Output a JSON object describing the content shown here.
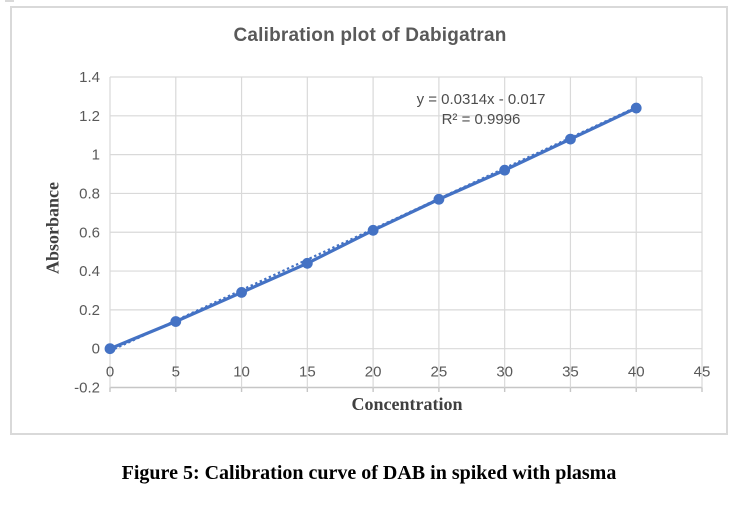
{
  "caption": "Figure 5: Calibration curve of DAB in spiked with plasma",
  "chart_data": {
    "type": "scatter",
    "title": "Calibration plot of Dabigatran",
    "xlabel": "Concentration",
    "ylabel": "Absorbance",
    "x": [
      0,
      5,
      10,
      15,
      20,
      25,
      30,
      35,
      40
    ],
    "y": [
      0.0,
      0.14,
      0.29,
      0.44,
      0.61,
      0.77,
      0.92,
      1.08,
      1.24
    ],
    "annotations": {
      "equation": "y = 0.0314x - 0.017",
      "r_squared": "R² = 0.9996"
    },
    "trendline": {
      "slope": 0.0314,
      "intercept": -0.017,
      "x_start": 0,
      "x_end": 40,
      "style": "dotted"
    },
    "xlim": [
      0,
      45
    ],
    "ylim": [
      -0.2,
      1.4
    ],
    "x_tick_labels": [
      "0",
      "5",
      "10",
      "15",
      "20",
      "25",
      "30",
      "35",
      "40",
      "45"
    ],
    "x_tick_values": [
      0,
      5,
      10,
      15,
      20,
      25,
      30,
      35,
      40,
      45
    ],
    "y_tick_labels": [
      "-0.2",
      "0",
      "0.2",
      "0.4",
      "0.6",
      "0.8",
      "1",
      "1.2",
      "1.4"
    ],
    "y_tick_values": [
      -0.2,
      0,
      0.2,
      0.4,
      0.6,
      0.8,
      1,
      1.2,
      1.4
    ],
    "grid": true,
    "legend": "none",
    "colors": {
      "series": "#4472C4",
      "gridline": "#d9d9d9",
      "axis_line": "#c6c6c6",
      "tick_text": "#595959",
      "title_text": "#595959",
      "axis_title_text": "#404040",
      "equation_text": "#4d4d4d",
      "frame_border": "#d9d9d9",
      "caption_text": "#000000"
    }
  }
}
